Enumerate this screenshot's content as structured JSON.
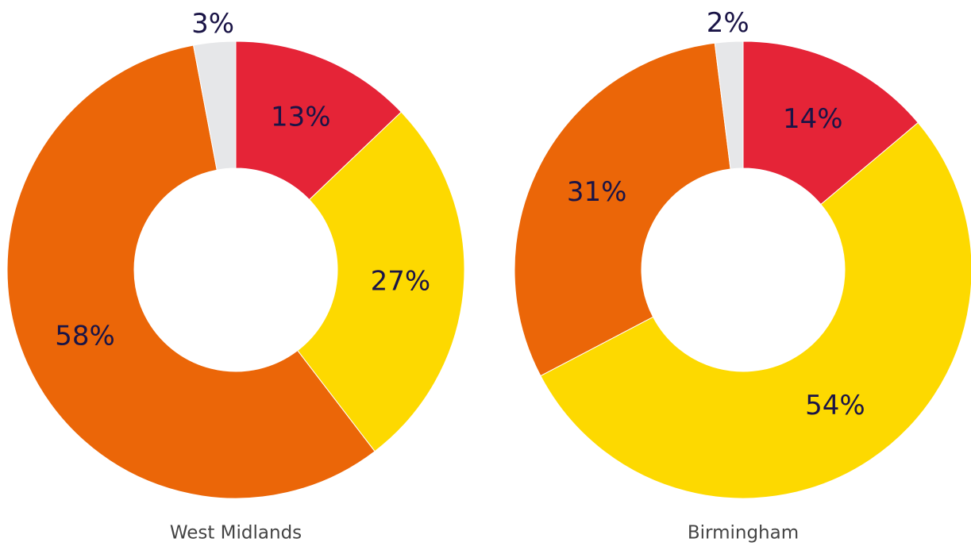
{
  "chart_data": [
    {
      "type": "pie",
      "title": "West Midlands",
      "values": [
        13,
        27,
        58,
        3
      ],
      "value_labels": [
        "13%",
        "27%",
        "58%",
        "3%"
      ],
      "colors": [
        "#e52437",
        "#fdd900",
        "#eb6608",
        "#e6e7e9"
      ]
    },
    {
      "type": "pie",
      "title": "Birmingham",
      "values": [
        14,
        54,
        31,
        2
      ],
      "value_labels": [
        "14%",
        "54%",
        "31%",
        "2%"
      ],
      "colors": [
        "#e52437",
        "#fdd900",
        "#eb6608",
        "#e6e7e9"
      ]
    }
  ]
}
